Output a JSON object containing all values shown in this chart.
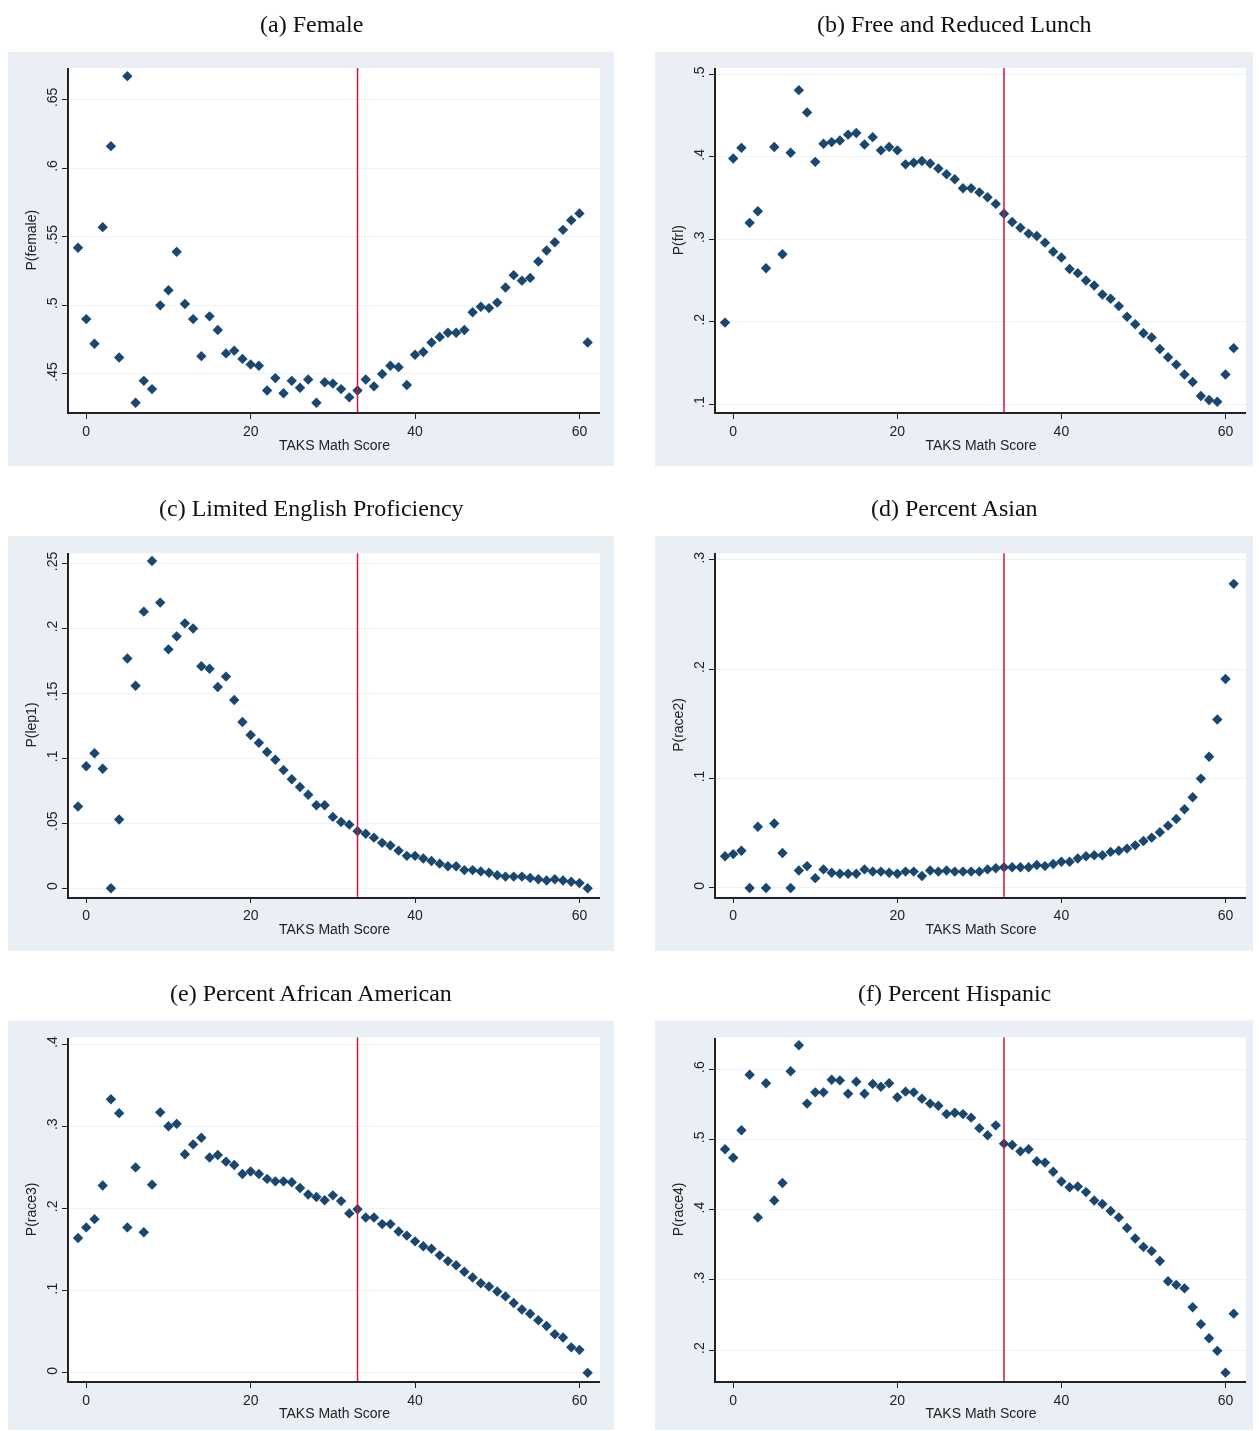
{
  "chart_data": [
    {
      "type": "scatter",
      "title": "(a) Female",
      "xlabel": "TAKS Math Score",
      "ylabel": "P(female)",
      "color": "#1a476f",
      "marker": "diamond",
      "grid": "y",
      "xlim": [
        -2.1,
        62.5
      ],
      "ylim": [
        0.422,
        0.673
      ],
      "xticks": [
        0,
        20,
        40,
        60
      ],
      "yticks": [
        {
          "value": 0.45,
          "label": ".45"
        },
        {
          "value": 0.5,
          "label": ".5"
        },
        {
          "value": 0.55,
          "label": ".55"
        },
        {
          "value": 0.6,
          "label": ".6"
        },
        {
          "value": 0.65,
          "label": ".65"
        }
      ],
      "ref_lines": [
        {
          "axis": "x",
          "value": 33,
          "color": "#d0163a"
        }
      ],
      "x": [
        -1,
        0,
        1,
        2,
        3,
        4,
        5,
        6,
        7,
        8,
        9,
        10,
        11,
        12,
        13,
        14,
        15,
        16,
        17,
        18,
        19,
        20,
        21,
        22,
        23,
        24,
        25,
        26,
        27,
        28,
        29,
        30,
        31,
        32,
        33,
        34,
        35,
        36,
        37,
        38,
        39,
        40,
        41,
        42,
        43,
        44,
        45,
        46,
        47,
        48,
        49,
        50,
        51,
        52,
        53,
        54,
        55,
        56,
        57,
        58,
        59,
        60,
        61
      ],
      "values": [
        0.542,
        0.49,
        0.472,
        0.557,
        0.616,
        0.462,
        0.667,
        0.429,
        0.445,
        0.439,
        0.5,
        0.511,
        0.539,
        0.501,
        0.49,
        0.463,
        0.492,
        0.482,
        0.465,
        0.467,
        0.461,
        0.457,
        0.456,
        0.438,
        0.447,
        0.436,
        0.445,
        0.44,
        0.446,
        0.429,
        0.444,
        0.443,
        0.439,
        0.433,
        0.438,
        0.446,
        0.441,
        0.45,
        0.456,
        0.455,
        0.442,
        0.464,
        0.466,
        0.473,
        0.477,
        0.48,
        0.48,
        0.482,
        0.495,
        0.499,
        0.498,
        0.502,
        0.513,
        0.522,
        0.518,
        0.52,
        0.532,
        0.54,
        0.546,
        0.555,
        0.562,
        0.567,
        0.473
      ]
    },
    {
      "type": "scatter",
      "title": "(b) Free and Reduced Lunch",
      "xlabel": "TAKS Math Score",
      "ylabel": "P(frl)",
      "color": "#1a476f",
      "marker": "diamond",
      "grid": "y",
      "xlim": [
        -2.1,
        62.5
      ],
      "ylim": [
        0.09,
        0.508
      ],
      "xticks": [
        0,
        20,
        40,
        60
      ],
      "yticks": [
        {
          "value": 0.1,
          "label": ".1"
        },
        {
          "value": 0.2,
          "label": ".2"
        },
        {
          "value": 0.3,
          "label": ".3"
        },
        {
          "value": 0.4,
          "label": ".4"
        },
        {
          "value": 0.5,
          "label": ".5"
        }
      ],
      "ref_lines": [
        {
          "axis": "x",
          "value": 33,
          "color": "#d0163a"
        }
      ],
      "x": [
        -1,
        0,
        1,
        2,
        3,
        4,
        5,
        6,
        7,
        8,
        9,
        10,
        11,
        12,
        13,
        14,
        15,
        16,
        17,
        18,
        19,
        20,
        21,
        22,
        23,
        24,
        25,
        26,
        27,
        28,
        29,
        30,
        31,
        32,
        33,
        34,
        35,
        36,
        37,
        38,
        39,
        40,
        41,
        42,
        43,
        44,
        45,
        46,
        47,
        48,
        49,
        50,
        51,
        52,
        53,
        54,
        55,
        56,
        57,
        58,
        59,
        60,
        61
      ],
      "values": [
        0.199,
        0.398,
        0.411,
        0.32,
        0.334,
        0.265,
        0.412,
        0.282,
        0.405,
        0.481,
        0.454,
        0.394,
        0.416,
        0.418,
        0.42,
        0.427,
        0.429,
        0.415,
        0.424,
        0.408,
        0.412,
        0.408,
        0.391,
        0.393,
        0.395,
        0.392,
        0.386,
        0.379,
        0.373,
        0.362,
        0.362,
        0.357,
        0.351,
        0.343,
        0.331,
        0.321,
        0.314,
        0.307,
        0.304,
        0.296,
        0.285,
        0.278,
        0.264,
        0.259,
        0.25,
        0.244,
        0.233,
        0.228,
        0.219,
        0.206,
        0.197,
        0.186,
        0.181,
        0.167,
        0.157,
        0.148,
        0.136,
        0.127,
        0.11,
        0.105,
        0.103,
        0.136,
        0.168
      ]
    },
    {
      "type": "scatter",
      "title": "(c) Limited English Proficiency",
      "xlabel": "TAKS Math Score",
      "ylabel": "P(lep1)",
      "color": "#1a476f",
      "marker": "diamond",
      "grid": "y",
      "xlim": [
        -2.1,
        62.5
      ],
      "ylim": [
        -0.0065,
        0.258
      ],
      "xticks": [
        0,
        20,
        40,
        60
      ],
      "yticks": [
        0,
        {
          "value": 0.05,
          "label": ".05"
        },
        {
          "value": 0.1,
          "label": ".1"
        },
        {
          "value": 0.15,
          "label": ".15"
        },
        {
          "value": 0.2,
          "label": ".2"
        },
        {
          "value": 0.25,
          "label": ".25"
        }
      ],
      "ref_lines": [
        {
          "axis": "x",
          "value": 33,
          "color": "#d0163a"
        }
      ],
      "x": [
        -1,
        0,
        1,
        2,
        3,
        4,
        5,
        6,
        7,
        8,
        9,
        10,
        11,
        12,
        13,
        14,
        15,
        16,
        17,
        18,
        19,
        20,
        21,
        22,
        23,
        24,
        25,
        26,
        27,
        28,
        29,
        30,
        31,
        32,
        33,
        34,
        35,
        36,
        37,
        38,
        39,
        40,
        41,
        42,
        43,
        44,
        45,
        46,
        47,
        48,
        49,
        50,
        51,
        52,
        53,
        54,
        55,
        56,
        57,
        58,
        59,
        60,
        61
      ],
      "values": [
        0.063,
        0.094,
        0.104,
        0.092,
        0.0,
        0.053,
        0.177,
        0.156,
        0.213,
        0.252,
        0.22,
        0.184,
        0.194,
        0.204,
        0.2,
        0.171,
        0.169,
        0.155,
        0.163,
        0.145,
        0.128,
        0.118,
        0.112,
        0.105,
        0.099,
        0.091,
        0.084,
        0.078,
        0.072,
        0.064,
        0.064,
        0.055,
        0.051,
        0.049,
        0.044,
        0.042,
        0.039,
        0.035,
        0.033,
        0.029,
        0.025,
        0.025,
        0.023,
        0.021,
        0.019,
        0.017,
        0.017,
        0.014,
        0.014,
        0.013,
        0.012,
        0.01,
        0.009,
        0.009,
        0.009,
        0.008,
        0.007,
        0.006,
        0.007,
        0.006,
        0.005,
        0.004,
        0.0
      ]
    },
    {
      "type": "scatter",
      "title": "(d) Percent Asian",
      "xlabel": "TAKS Math Score",
      "ylabel": "P(race2)",
      "color": "#1a476f",
      "marker": "diamond",
      "grid": "y",
      "xlim": [
        -2.1,
        62.5
      ],
      "ylim": [
        -0.008,
        0.306
      ],
      "xticks": [
        0,
        20,
        40,
        60
      ],
      "yticks": [
        0,
        {
          "value": 0.1,
          "label": ".1"
        },
        {
          "value": 0.2,
          "label": ".2"
        },
        {
          "value": 0.3,
          "label": ".3"
        }
      ],
      "ref_lines": [
        {
          "axis": "x",
          "value": 33,
          "color": "#d0163a"
        }
      ],
      "x": [
        -1,
        0,
        1,
        2,
        3,
        4,
        5,
        6,
        7,
        8,
        9,
        10,
        11,
        12,
        13,
        14,
        15,
        16,
        17,
        18,
        19,
        20,
        21,
        22,
        23,
        24,
        25,
        26,
        27,
        28,
        29,
        30,
        31,
        32,
        33,
        34,
        35,
        36,
        37,
        38,
        39,
        40,
        41,
        42,
        43,
        44,
        45,
        46,
        47,
        48,
        49,
        50,
        51,
        52,
        53,
        54,
        55,
        56,
        57,
        58,
        59,
        60,
        61
      ],
      "values": [
        0.029,
        0.031,
        0.034,
        0.0,
        0.056,
        0.0,
        0.059,
        0.032,
        0.0,
        0.016,
        0.02,
        0.009,
        0.017,
        0.014,
        0.013,
        0.013,
        0.013,
        0.017,
        0.015,
        0.015,
        0.014,
        0.013,
        0.015,
        0.015,
        0.011,
        0.016,
        0.015,
        0.016,
        0.015,
        0.015,
        0.015,
        0.015,
        0.017,
        0.018,
        0.019,
        0.019,
        0.019,
        0.019,
        0.021,
        0.02,
        0.022,
        0.024,
        0.024,
        0.027,
        0.029,
        0.03,
        0.03,
        0.033,
        0.034,
        0.036,
        0.039,
        0.043,
        0.046,
        0.051,
        0.057,
        0.063,
        0.072,
        0.083,
        0.1,
        0.12,
        0.154,
        0.191,
        0.278
      ]
    },
    {
      "type": "scatter",
      "title": "(e) Percent African American",
      "xlabel": "TAKS Math Score",
      "ylabel": "P(race3)",
      "color": "#1a476f",
      "marker": "diamond",
      "grid": "y",
      "xlim": [
        -2.1,
        62.5
      ],
      "ylim": [
        -0.01,
        0.408
      ],
      "xticks": [
        0,
        20,
        40,
        60
      ],
      "yticks": [
        {
          "value": 0,
          "label": "0"
        },
        {
          "value": 0.1,
          "label": ".1"
        },
        {
          "value": 0.2,
          "label": ".2"
        },
        {
          "value": 0.3,
          "label": ".3"
        },
        {
          "value": 0.4,
          "label": ".4"
        }
      ],
      "ref_lines": [
        {
          "axis": "x",
          "value": 33,
          "color": "#d0163a"
        }
      ],
      "x": [
        -1,
        0,
        1,
        2,
        3,
        4,
        5,
        6,
        7,
        8,
        9,
        10,
        11,
        12,
        13,
        14,
        15,
        16,
        17,
        18,
        19,
        20,
        21,
        22,
        23,
        24,
        25,
        26,
        27,
        28,
        29,
        30,
        31,
        32,
        33,
        34,
        35,
        36,
        37,
        38,
        39,
        40,
        41,
        42,
        43,
        44,
        45,
        46,
        47,
        48,
        49,
        50,
        51,
        52,
        53,
        54,
        55,
        56,
        57,
        58,
        59,
        60,
        61
      ],
      "values": [
        0.164,
        0.177,
        0.187,
        0.228,
        0.333,
        0.316,
        0.177,
        0.25,
        0.171,
        0.229,
        0.317,
        0.3,
        0.303,
        0.266,
        0.278,
        0.286,
        0.262,
        0.265,
        0.257,
        0.253,
        0.242,
        0.245,
        0.242,
        0.236,
        0.233,
        0.233,
        0.232,
        0.225,
        0.217,
        0.214,
        0.21,
        0.216,
        0.209,
        0.194,
        0.199,
        0.189,
        0.189,
        0.181,
        0.181,
        0.172,
        0.167,
        0.16,
        0.154,
        0.151,
        0.143,
        0.136,
        0.131,
        0.123,
        0.116,
        0.109,
        0.105,
        0.099,
        0.093,
        0.085,
        0.077,
        0.072,
        0.064,
        0.057,
        0.047,
        0.043,
        0.031,
        0.028,
        0.0
      ]
    },
    {
      "type": "scatter",
      "title": "(f) Percent Hispanic",
      "xlabel": "TAKS Math Score",
      "ylabel": "P(race4)",
      "color": "#1a476f",
      "marker": "diamond",
      "grid": "y",
      "xlim": [
        -2.1,
        62.5
      ],
      "ylim": [
        0.156,
        0.645
      ],
      "xticks": [
        0,
        20,
        40,
        60
      ],
      "yticks": [
        {
          "value": 0.2,
          "label": ".2"
        },
        {
          "value": 0.3,
          "label": ".3"
        },
        {
          "value": 0.4,
          "label": ".4"
        },
        {
          "value": 0.5,
          "label": ".5"
        },
        {
          "value": 0.6,
          "label": ".6"
        }
      ],
      "ref_lines": [
        {
          "axis": "x",
          "value": 33,
          "color": "#d0163a"
        }
      ],
      "x": [
        -1,
        0,
        1,
        2,
        3,
        4,
        5,
        6,
        7,
        8,
        9,
        10,
        11,
        12,
        13,
        14,
        15,
        16,
        17,
        18,
        19,
        20,
        21,
        22,
        23,
        24,
        25,
        26,
        27,
        28,
        29,
        30,
        31,
        32,
        33,
        34,
        35,
        36,
        37,
        38,
        39,
        40,
        41,
        42,
        43,
        44,
        45,
        46,
        47,
        48,
        49,
        50,
        51,
        52,
        53,
        54,
        55,
        56,
        57,
        58,
        59,
        60,
        61
      ],
      "values": [
        0.486,
        0.474,
        0.513,
        0.592,
        0.389,
        0.58,
        0.413,
        0.438,
        0.597,
        0.634,
        0.551,
        0.567,
        0.567,
        0.585,
        0.584,
        0.565,
        0.582,
        0.565,
        0.579,
        0.575,
        0.58,
        0.56,
        0.568,
        0.567,
        0.558,
        0.551,
        0.548,
        0.536,
        0.538,
        0.536,
        0.531,
        0.516,
        0.506,
        0.52,
        0.494,
        0.492,
        0.483,
        0.486,
        0.469,
        0.467,
        0.454,
        0.44,
        0.432,
        0.433,
        0.425,
        0.413,
        0.408,
        0.398,
        0.389,
        0.374,
        0.359,
        0.347,
        0.341,
        0.327,
        0.298,
        0.293,
        0.288,
        0.261,
        0.237,
        0.217,
        0.199,
        0.168,
        0.252
      ]
    }
  ]
}
